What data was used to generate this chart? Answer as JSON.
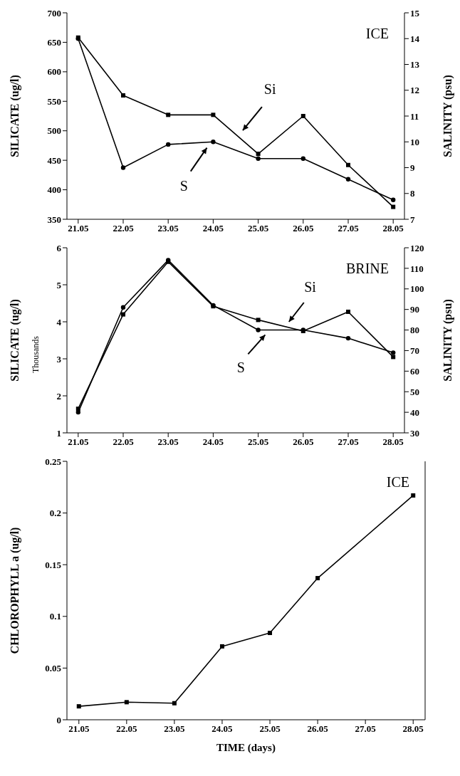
{
  "chart_data": [
    {
      "type": "line",
      "categories": [
        "21.05",
        "22.05",
        "23.05",
        "24.05",
        "25.05",
        "26.05",
        "27.05",
        "28.05"
      ],
      "ylabel": "SILICATE (ug/l)",
      "y2label": "SALINITY (psu)",
      "ylim": [
        350,
        700
      ],
      "yticks": [
        350,
        400,
        450,
        500,
        550,
        600,
        650,
        700
      ],
      "y2lim": [
        7,
        15
      ],
      "y2ticks": [
        7,
        8,
        9,
        10,
        11,
        12,
        13,
        14,
        15
      ],
      "line_style": "solid",
      "annotations": [
        "ICE"
      ],
      "series": [
        {
          "name": "Si",
          "color": "#000000",
          "marker": "square",
          "values": [
            658,
            560,
            527,
            527,
            461,
            525,
            442,
            371
          ]
        },
        {
          "name": "S",
          "color": "#000000",
          "marker": "circle",
          "axis": "y2",
          "values": [
            14.0,
            9.0,
            9.9,
            10.0,
            9.35,
            9.35,
            8.55,
            7.75
          ]
        }
      ]
    },
    {
      "type": "line",
      "categories": [
        "21.05",
        "22.05",
        "23.05",
        "24.05",
        "25.05",
        "26.05",
        "27.05",
        "28.05"
      ],
      "ylabel": "SILICATE (ug/l)",
      "y2label": "SALINITY (psu)",
      "ylim": [
        1,
        6
      ],
      "yticks": [
        1,
        2,
        3,
        4,
        5,
        6
      ],
      "y2lim": [
        30,
        120
      ],
      "y2ticks": [
        30,
        40,
        50,
        60,
        70,
        80,
        90,
        100,
        110,
        120
      ],
      "line_style": "solid",
      "annotations": [
        "BRINE",
        "Thousands"
      ],
      "series": [
        {
          "name": "Si",
          "color": "#000000",
          "marker": "square",
          "values": [
            1.65,
            4.2,
            5.62,
            4.42,
            4.05,
            3.75,
            4.27,
            3.05
          ]
        },
        {
          "name": "S",
          "color": "#000000",
          "marker": "circle",
          "axis": "y2",
          "values": [
            40,
            91,
            114,
            92,
            80,
            80,
            76,
            69
          ]
        }
      ]
    },
    {
      "type": "line",
      "categories": [
        "21.05",
        "22.05",
        "23.05",
        "24.05",
        "25.05",
        "26.05",
        "27.05",
        "28.05"
      ],
      "xlabel": "TIME (days)",
      "ylabel": "CHLOROPHYLL a (ug/l)",
      "ylim": [
        0,
        0.25
      ],
      "yticks": [
        0,
        0.05,
        0.1,
        0.15,
        0.2,
        0.25
      ],
      "line_style": "solid",
      "annotations": [
        "ICE"
      ],
      "series": [
        {
          "color": "#000000",
          "marker": "square",
          "values": [
            0.013,
            0.017,
            0.016,
            0.071,
            0.084,
            0.137,
            null,
            0.217
          ]
        }
      ]
    }
  ]
}
